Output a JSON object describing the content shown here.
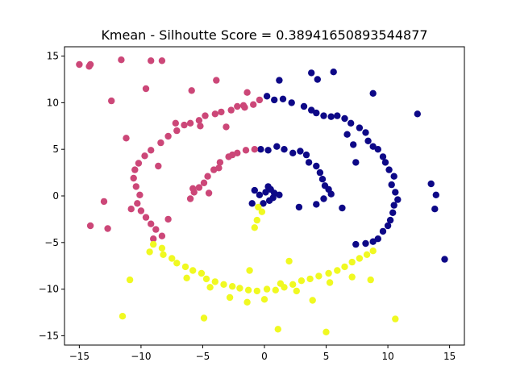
{
  "chart_data": {
    "type": "scatter",
    "title": "Kmean - Silhoutte Score = 0.38941650893544877",
    "xlabel": "",
    "ylabel": "",
    "xlim": [
      -16.2,
      16.2
    ],
    "ylim": [
      -16.0,
      16.0
    ],
    "xticks": [
      -15,
      -10,
      -5,
      0,
      5,
      10,
      15
    ],
    "yticks": [
      -15,
      -10,
      -5,
      0,
      5,
      10,
      15
    ],
    "grid": false,
    "legend": "none",
    "series": [
      {
        "color": "#0d0887",
        "points": [
          [
            0.2,
            10.7
          ],
          [
            0.8,
            10.3
          ],
          [
            1.5,
            10.4
          ],
          [
            2.2,
            10.0
          ],
          [
            3.2,
            9.6
          ],
          [
            3.8,
            9.2
          ],
          [
            4.2,
            8.9
          ],
          [
            4.8,
            8.6
          ],
          [
            5.4,
            8.5
          ],
          [
            5.9,
            8.6
          ],
          [
            6.5,
            8.3
          ],
          [
            7.0,
            7.8
          ],
          [
            7.7,
            7.3
          ],
          [
            8.2,
            6.8
          ],
          [
            8.4,
            5.9
          ],
          [
            8.8,
            5.3
          ],
          [
            9.2,
            5.0
          ],
          [
            9.6,
            4.2
          ],
          [
            9.8,
            3.6
          ],
          [
            10.1,
            2.8
          ],
          [
            10.5,
            2.1
          ],
          [
            10.3,
            1.2
          ],
          [
            10.6,
            0.4
          ],
          [
            10.8,
            -0.4
          ],
          [
            10.5,
            -1.0
          ],
          [
            10.4,
            -1.8
          ],
          [
            10.2,
            -2.6
          ],
          [
            10.0,
            -3.2
          ],
          [
            9.6,
            -3.8
          ],
          [
            9.2,
            -4.6
          ],
          [
            8.8,
            -4.9
          ],
          [
            8.2,
            -5.1
          ],
          [
            7.4,
            -5.2
          ],
          [
            12.4,
            8.8
          ],
          [
            13.5,
            1.3
          ],
          [
            13.9,
            0.1
          ],
          [
            13.8,
            -1.4
          ],
          [
            14.6,
            -6.8
          ],
          [
            3.8,
            13.2
          ],
          [
            4.3,
            12.5
          ],
          [
            5.6,
            13.3
          ],
          [
            1.2,
            12.4
          ],
          [
            8.8,
            11.0
          ],
          [
            -0.3,
            5.0
          ],
          [
            0.3,
            4.9
          ],
          [
            1.0,
            5.3
          ],
          [
            1.6,
            5.0
          ],
          [
            2.3,
            4.6
          ],
          [
            2.9,
            4.8
          ],
          [
            3.4,
            4.4
          ],
          [
            3.6,
            3.6
          ],
          [
            4.2,
            3.2
          ],
          [
            4.5,
            2.5
          ],
          [
            4.7,
            1.8
          ],
          [
            4.9,
            1.1
          ],
          [
            5.2,
            0.7
          ],
          [
            5.4,
            0.2
          ],
          [
            4.8,
            -0.3
          ],
          [
            4.2,
            -0.9
          ],
          [
            6.3,
            -1.3
          ],
          [
            2.8,
            -1.2
          ],
          [
            0.3,
            1.0
          ],
          [
            0.8,
            0.3
          ],
          [
            0.1,
            0.4
          ],
          [
            -0.4,
            0.1
          ],
          [
            0.4,
            -0.5
          ],
          [
            -0.1,
            -0.8
          ],
          [
            -1.0,
            -0.8
          ],
          [
            -0.8,
            0.6
          ],
          [
            0.7,
            -0.2
          ],
          [
            1.2,
            0.1
          ],
          [
            0.5,
            0.7
          ],
          [
            7.2,
            5.5
          ],
          [
            6.7,
            6.6
          ],
          [
            7.4,
            3.6
          ]
        ]
      },
      {
        "color": "#cc4778",
        "points": [
          [
            -15.0,
            14.1
          ],
          [
            -14.2,
            13.9
          ],
          [
            -14.1,
            14.1
          ],
          [
            -11.6,
            14.6
          ],
          [
            -9.2,
            14.5
          ],
          [
            -8.3,
            14.5
          ],
          [
            -9.6,
            11.5
          ],
          [
            -12.4,
            10.2
          ],
          [
            -11.2,
            6.2
          ],
          [
            -5.9,
            11.3
          ],
          [
            -3.9,
            12.4
          ],
          [
            -1.4,
            11.1
          ],
          [
            -1.7,
            9.7
          ],
          [
            -0.4,
            10.3
          ],
          [
            -0.9,
            9.8
          ],
          [
            -1.6,
            9.5
          ],
          [
            -2.2,
            9.6
          ],
          [
            -2.7,
            9.2
          ],
          [
            -3.5,
            9.0
          ],
          [
            -4.0,
            8.8
          ],
          [
            -4.8,
            8.6
          ],
          [
            -5.3,
            8.1
          ],
          [
            -6.0,
            7.8
          ],
          [
            -6.5,
            7.6
          ],
          [
            -7.1,
            7.0
          ],
          [
            -7.8,
            6.4
          ],
          [
            -8.4,
            5.7
          ],
          [
            -9.2,
            4.9
          ],
          [
            -9.7,
            4.3
          ],
          [
            -10.2,
            3.5
          ],
          [
            -10.5,
            2.8
          ],
          [
            -10.6,
            1.9
          ],
          [
            -10.4,
            1.0
          ],
          [
            -10.1,
            0.1
          ],
          [
            -10.3,
            -0.8
          ],
          [
            -10.0,
            -1.6
          ],
          [
            -9.6,
            -2.3
          ],
          [
            -9.2,
            -3.0
          ],
          [
            -8.8,
            -3.6
          ],
          [
            -8.3,
            -4.3
          ],
          [
            -7.8,
            -2.5
          ],
          [
            -9.0,
            -4.6
          ],
          [
            -13.0,
            -0.6
          ],
          [
            -12.7,
            -3.5
          ],
          [
            -14.1,
            -3.2
          ],
          [
            -10.8,
            -1.4
          ],
          [
            -8.6,
            3.2
          ],
          [
            -7.2,
            7.8
          ],
          [
            -5.2,
            7.5
          ],
          [
            -3.1,
            7.4
          ],
          [
            -1.5,
            4.9
          ],
          [
            -2.2,
            4.6
          ],
          [
            -2.9,
            4.2
          ],
          [
            -3.6,
            3.6
          ],
          [
            -4.1,
            2.8
          ],
          [
            -4.6,
            2.1
          ],
          [
            -4.9,
            1.4
          ],
          [
            -5.3,
            0.9
          ],
          [
            -5.7,
            0.4
          ],
          [
            -6.0,
            -0.3
          ],
          [
            -5.8,
            0.8
          ],
          [
            -4.5,
            0.3
          ],
          [
            -3.7,
            3.0
          ],
          [
            -2.6,
            4.4
          ],
          [
            -0.8,
            5.0
          ]
        ]
      },
      {
        "color": "#f0f921",
        "points": [
          [
            -9.0,
            -5.2
          ],
          [
            -8.3,
            -5.6
          ],
          [
            -8.2,
            -6.3
          ],
          [
            -7.5,
            -6.7
          ],
          [
            -7.1,
            -7.2
          ],
          [
            -6.4,
            -7.6
          ],
          [
            -5.8,
            -8.0
          ],
          [
            -5.1,
            -8.3
          ],
          [
            -4.7,
            -8.9
          ],
          [
            -4.0,
            -9.2
          ],
          [
            -3.3,
            -9.5
          ],
          [
            -2.6,
            -9.7
          ],
          [
            -2.0,
            -9.9
          ],
          [
            -1.3,
            -10.1
          ],
          [
            -0.6,
            -10.2
          ],
          [
            0.2,
            -10.0
          ],
          [
            0.9,
            -10.1
          ],
          [
            1.6,
            -9.8
          ],
          [
            2.3,
            -9.5
          ],
          [
            3.0,
            -9.1
          ],
          [
            3.7,
            -8.9
          ],
          [
            4.4,
            -8.6
          ],
          [
            5.2,
            -8.3
          ],
          [
            5.9,
            -8.0
          ],
          [
            6.5,
            -7.6
          ],
          [
            7.1,
            -7.1
          ],
          [
            7.7,
            -6.7
          ],
          [
            8.3,
            -6.3
          ],
          [
            8.8,
            -5.9
          ],
          [
            -9.3,
            -6.0
          ],
          [
            -6.3,
            -8.8
          ],
          [
            -4.4,
            -9.8
          ],
          [
            -2.8,
            -10.9
          ],
          [
            -1.4,
            -11.4
          ],
          [
            0.0,
            -11.1
          ],
          [
            1.3,
            -9.4
          ],
          [
            2.6,
            -10.2
          ],
          [
            3.9,
            -11.2
          ],
          [
            5.3,
            -9.3
          ],
          [
            7.1,
            -8.7
          ],
          [
            -1.2,
            -8.0
          ],
          [
            2.0,
            -7.0
          ],
          [
            -0.8,
            -3.4
          ],
          [
            -0.5,
            -1.2
          ],
          [
            -0.2,
            -1.7
          ],
          [
            -0.6,
            -2.6
          ],
          [
            -10.9,
            -9.0
          ],
          [
            -11.5,
            -12.9
          ],
          [
            -4.9,
            -13.1
          ],
          [
            1.1,
            -14.3
          ],
          [
            5.0,
            -14.6
          ],
          [
            10.6,
            -13.2
          ],
          [
            8.6,
            -9.0
          ]
        ]
      }
    ]
  }
}
